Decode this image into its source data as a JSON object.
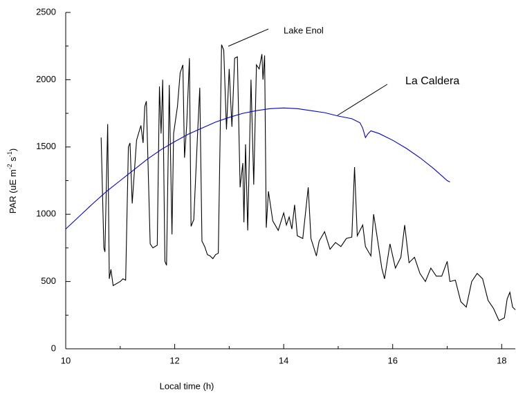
{
  "chart_data": {
    "type": "line",
    "xlabel": "Local time (h)",
    "ylabel": [
      "PAR (uE m",
      "-2",
      " s",
      "-1",
      ")"
    ],
    "xlim": [
      10,
      18.25
    ],
    "ylim": [
      0,
      2500
    ],
    "xticks": [
      10,
      12,
      14,
      16,
      18
    ],
    "xminor": [
      11,
      13,
      15,
      17
    ],
    "yticks": [
      0,
      500,
      1000,
      1500,
      2000,
      2500
    ],
    "yminor": [
      250,
      750,
      1250,
      1750,
      2250
    ],
    "annotations": [
      "Lake Enol",
      "La Caldera"
    ],
    "series": [
      {
        "name": "Lake Enol",
        "color": "#000000",
        "x": [
          10.65,
          10.7,
          10.72,
          10.77,
          10.8,
          10.83,
          10.87,
          11,
          11.05,
          11.1,
          11.15,
          11.18,
          11.22,
          11.3,
          11.38,
          11.42,
          11.45,
          11.48,
          11.55,
          11.6,
          11.68,
          11.72,
          11.75,
          11.78,
          11.82,
          11.85,
          11.9,
          11.95,
          11.98,
          12.05,
          12.1,
          12.15,
          12.18,
          12.22,
          12.27,
          12.3,
          12.35,
          12.42,
          12.46,
          12.5,
          12.55,
          12.6,
          12.65,
          12.7,
          12.75,
          12.8,
          12.86,
          12.9,
          12.95,
          13,
          13.05,
          13.1,
          13.15,
          13.2,
          13.25,
          13.27,
          13.3,
          13.34,
          13.4,
          13.45,
          13.5,
          13.55,
          13.6,
          13.62,
          13.65,
          13.68,
          13.72,
          13.8,
          13.9,
          14,
          14.05,
          14.1,
          14.15,
          14.2,
          14.25,
          14.35,
          14.45,
          14.5,
          14.6,
          14.65,
          14.75,
          14.85,
          14.95,
          15.05,
          15.15,
          15.25,
          15.3,
          15.35,
          15.45,
          15.5,
          15.6,
          15.65,
          15.7,
          15.8,
          15.85,
          15.95,
          16.05,
          16.15,
          16.22,
          16.3,
          16.4,
          16.5,
          16.6,
          16.7,
          16.8,
          16.9,
          17,
          17.05,
          17.15,
          17.25,
          17.35,
          17.45,
          17.55,
          17.65,
          17.75,
          17.85,
          17.95,
          18.05,
          18.1,
          18.15,
          18.2,
          18.25
        ],
        "values": [
          1570,
          750,
          720,
          1670,
          520,
          590,
          470,
          500,
          520,
          510,
          1500,
          1530,
          1080,
          1550,
          1660,
          1530,
          1800,
          1840,
          780,
          750,
          770,
          1950,
          1600,
          2000,
          650,
          620,
          1960,
          850,
          1600,
          1800,
          2050,
          2110,
          1420,
          1660,
          2160,
          910,
          960,
          1600,
          1940,
          800,
          760,
          700,
          690,
          670,
          700,
          710,
          2260,
          2220,
          1630,
          2080,
          1650,
          2160,
          2170,
          1200,
          1380,
          940,
          1520,
          880,
          2000,
          1220,
          2110,
          2080,
          2190,
          2000,
          2180,
          900,
          1170,
          950,
          880,
          1010,
          920,
          980,
          890,
          1070,
          840,
          820,
          1200,
          820,
          690,
          800,
          870,
          740,
          790,
          760,
          820,
          830,
          1350,
          840,
          920,
          760,
          690,
          1000,
          870,
          600,
          520,
          780,
          600,
          680,
          920,
          640,
          680,
          560,
          500,
          600,
          540,
          540,
          650,
          500,
          510,
          350,
          310,
          500,
          560,
          520,
          360,
          300,
          210,
          230,
          370,
          420,
          310,
          290
        ]
      },
      {
        "name": "La Caldera",
        "color": "#0000cc",
        "x": [
          10,
          10.25,
          10.5,
          10.75,
          11,
          11.25,
          11.5,
          11.75,
          12,
          12.25,
          12.5,
          12.75,
          13,
          13.25,
          13.5,
          13.75,
          14,
          14.25,
          14.5,
          14.75,
          15,
          15.25,
          15.4,
          15.45,
          15.5,
          15.55,
          15.6,
          15.75,
          16,
          16.25,
          16.5,
          16.75,
          17,
          17.05
        ],
        "values": [
          890,
          985,
          1080,
          1170,
          1250,
          1330,
          1410,
          1480,
          1540,
          1595,
          1640,
          1685,
          1720,
          1750,
          1770,
          1785,
          1790,
          1785,
          1770,
          1755,
          1730,
          1710,
          1680,
          1640,
          1570,
          1600,
          1620,
          1600,
          1550,
          1490,
          1420,
          1340,
          1250,
          1240
        ]
      }
    ]
  }
}
